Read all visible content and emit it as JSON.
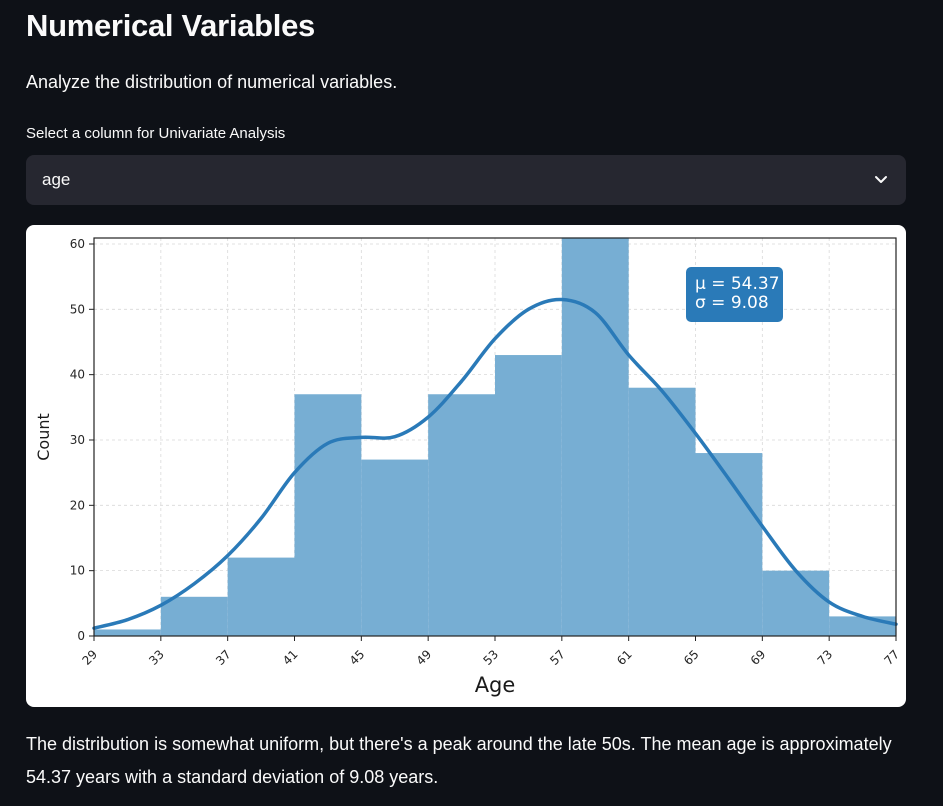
{
  "page": {
    "title": "Numerical Variables",
    "subtitle": "Analyze the distribution of numerical variables."
  },
  "select": {
    "label": "Select a column for Univariate Analysis",
    "value": "age",
    "icon": "chevron-down-icon"
  },
  "description": "The distribution is somewhat uniform, but there's a peak around the late 50s. The mean age is approximately 54.37 years with a standard deviation of 9.08 years.",
  "colors": {
    "background": "#0e1117",
    "bar": "#77aed3",
    "kde": "#2a7ab8",
    "stats_box": "#2a7ab8"
  },
  "chart_data": {
    "type": "bar",
    "title": "",
    "xlabel": "Age",
    "ylabel": "Count",
    "bin_edges": [
      29,
      33,
      37,
      41,
      45,
      49,
      53,
      57,
      61,
      65,
      69,
      73,
      77
    ],
    "x_tick_labels": [
      "29",
      "33",
      "37",
      "41",
      "45",
      "49",
      "53",
      "57",
      "61",
      "65",
      "69",
      "73",
      "77"
    ],
    "values": [
      1,
      6,
      12,
      37,
      27,
      37,
      43,
      61,
      38,
      28,
      10,
      3
    ],
    "xlim": [
      29,
      77
    ],
    "ylim": [
      0,
      60
    ],
    "y_ticks": [
      0,
      10,
      20,
      30,
      40,
      50,
      60
    ],
    "y_tick_labels": [
      "0",
      "10",
      "20",
      "30",
      "40",
      "50",
      "60"
    ],
    "kde": {
      "x": [
        29,
        31,
        33,
        35,
        37,
        39,
        41,
        43,
        45,
        47,
        49,
        51,
        53,
        55,
        57,
        59,
        61,
        63,
        65,
        67,
        69,
        71,
        73,
        75,
        77
      ],
      "y": [
        1.2,
        2.5,
        4.7,
        8,
        12.3,
        18,
        25,
        29.5,
        30.4,
        30.5,
        33.5,
        39,
        45.5,
        50,
        51.5,
        49.5,
        43,
        37.5,
        31,
        24,
        16.8,
        10,
        5.2,
        3,
        1.8
      ]
    },
    "stats_lines": [
      "μ = 54.37",
      "σ = 9.08"
    ],
    "grid": true,
    "legend": "top-right"
  }
}
